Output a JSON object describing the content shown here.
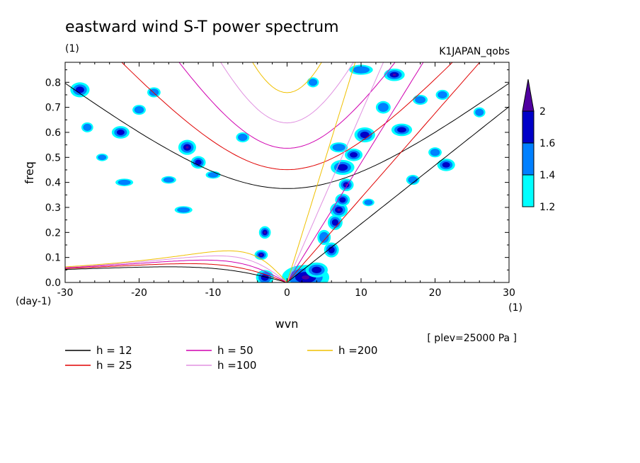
{
  "chart_data": {
    "type": "heatmap",
    "title": "eastward wind S-T power spectrum",
    "subtitle_left": "(1)",
    "subtitle_right": "K1JAPAN_qobs",
    "xlabel": "wvn",
    "ylabel": "freq",
    "x_unit": "(1)",
    "y_unit": "(day-1)",
    "annotation": "[ plev=25000 Pa ]",
    "xlim": [
      -30,
      30
    ],
    "ylim": [
      0,
      0.88
    ],
    "x_ticks": [
      {
        "value": -30,
        "label": "-30"
      },
      {
        "value": -20,
        "label": "-20"
      },
      {
        "value": -10,
        "label": "-10"
      },
      {
        "value": 0,
        "label": "0"
      },
      {
        "value": 10,
        "label": "10"
      },
      {
        "value": 20,
        "label": "20"
      },
      {
        "value": 30,
        "label": "30"
      }
    ],
    "y_ticks": [
      {
        "value": 0.0,
        "label": "0.0"
      },
      {
        "value": 0.1,
        "label": "0.1"
      },
      {
        "value": 0.2,
        "label": "0.2"
      },
      {
        "value": 0.3,
        "label": "0.3"
      },
      {
        "value": 0.4,
        "label": "0.4"
      },
      {
        "value": 0.5,
        "label": "0.5"
      },
      {
        "value": 0.6,
        "label": "0.6"
      },
      {
        "value": 0.7,
        "label": "0.7"
      },
      {
        "value": 0.8,
        "label": "0.8"
      }
    ],
    "colorbar": {
      "levels": [
        1.2,
        1.4,
        1.6,
        2.0
      ],
      "labels": [
        "1.2",
        "1.4",
        "1.6",
        "2"
      ],
      "colors": [
        "#00ffff",
        "#0080ff",
        "#0000c8",
        "#5000a0"
      ]
    },
    "dispersion_curves": [
      {
        "name": "h = 12",
        "h": 12,
        "color": "#000000"
      },
      {
        "name": "h = 25",
        "h": 25,
        "color": "#e00000"
      },
      {
        "name": "h = 50",
        "h": 50,
        "color": "#d000b0"
      },
      {
        "name": "h =100",
        "h": 100,
        "color": "#e090e0"
      },
      {
        "name": "h =200",
        "h": 200,
        "color": "#f0c000"
      }
    ],
    "power_blobs": [
      {
        "k": 2.5,
        "f": 0.02,
        "rk": 3.2,
        "rf": 0.05,
        "level": 3
      },
      {
        "k": 4.0,
        "f": 0.05,
        "rk": 1.5,
        "rf": 0.03,
        "level": 2
      },
      {
        "k": -3.5,
        "f": 0.11,
        "rk": 0.9,
        "rf": 0.02,
        "level": 3
      },
      {
        "k": -3.0,
        "f": 0.02,
        "rk": 1.2,
        "rf": 0.03,
        "level": 2
      },
      {
        "k": -3.0,
        "f": 0.2,
        "rk": 0.8,
        "rf": 0.025,
        "level": 3
      },
      {
        "k": 6.0,
        "f": 0.13,
        "rk": 1.0,
        "rf": 0.03,
        "level": 2
      },
      {
        "k": 5.0,
        "f": 0.18,
        "rk": 0.9,
        "rf": 0.03,
        "level": 1
      },
      {
        "k": 6.5,
        "f": 0.24,
        "rk": 1.0,
        "rf": 0.03,
        "level": 2
      },
      {
        "k": 7.0,
        "f": 0.29,
        "rk": 1.2,
        "rf": 0.03,
        "level": 3
      },
      {
        "k": 7.5,
        "f": 0.33,
        "rk": 1.0,
        "rf": 0.025,
        "level": 2
      },
      {
        "k": 8.0,
        "f": 0.39,
        "rk": 1.0,
        "rf": 0.025,
        "level": 3
      },
      {
        "k": 7.5,
        "f": 0.46,
        "rk": 1.6,
        "rf": 0.03,
        "level": 2
      },
      {
        "k": 9.0,
        "f": 0.51,
        "rk": 1.2,
        "rf": 0.025,
        "level": 2
      },
      {
        "k": 10.5,
        "f": 0.59,
        "rk": 1.4,
        "rf": 0.03,
        "level": 2
      },
      {
        "k": 14.5,
        "f": 0.83,
        "rk": 1.4,
        "rf": 0.025,
        "level": 3
      },
      {
        "k": 15.5,
        "f": 0.61,
        "rk": 1.4,
        "rf": 0.025,
        "level": 2
      },
      {
        "k": 13.0,
        "f": 0.7,
        "rk": 1.0,
        "rf": 0.025,
        "level": 1
      },
      {
        "k": 21.5,
        "f": 0.47,
        "rk": 1.2,
        "rf": 0.025,
        "level": 2
      },
      {
        "k": 17.0,
        "f": 0.41,
        "rk": 0.9,
        "rf": 0.02,
        "level": 1
      },
      {
        "k": -13.5,
        "f": 0.54,
        "rk": 1.2,
        "rf": 0.03,
        "level": 3
      },
      {
        "k": -12.0,
        "f": 0.48,
        "rk": 1.0,
        "rf": 0.025,
        "level": 2
      },
      {
        "k": -22.5,
        "f": 0.6,
        "rk": 1.2,
        "rf": 0.025,
        "level": 2
      },
      {
        "k": -28.0,
        "f": 0.77,
        "rk": 1.3,
        "rf": 0.03,
        "level": 2
      },
      {
        "k": -27.0,
        "f": 0.62,
        "rk": 0.8,
        "rf": 0.02,
        "level": 1
      },
      {
        "k": -22.0,
        "f": 0.4,
        "rk": 1.2,
        "rf": 0.015,
        "level": 1
      },
      {
        "k": -14.0,
        "f": 0.29,
        "rk": 1.2,
        "rf": 0.015,
        "level": 1
      },
      {
        "k": -6.0,
        "f": 0.58,
        "rk": 0.9,
        "rf": 0.02,
        "level": 1
      },
      {
        "k": -20.0,
        "f": 0.69,
        "rk": 0.9,
        "rf": 0.02,
        "level": 1
      },
      {
        "k": 3.5,
        "f": 0.8,
        "rk": 0.8,
        "rf": 0.02,
        "level": 1
      },
      {
        "k": 18.0,
        "f": 0.73,
        "rk": 1.0,
        "rf": 0.02,
        "level": 1
      },
      {
        "k": 21.0,
        "f": 0.75,
        "rk": 0.9,
        "rf": 0.02,
        "level": 1
      },
      {
        "k": 26.0,
        "f": 0.68,
        "rk": 0.8,
        "rf": 0.02,
        "level": 1
      },
      {
        "k": -10.0,
        "f": 0.43,
        "rk": 1.0,
        "rf": 0.015,
        "level": 1
      },
      {
        "k": -16.0,
        "f": 0.41,
        "rk": 1.0,
        "rf": 0.015,
        "level": 1
      },
      {
        "k": 10.0,
        "f": 0.85,
        "rk": 1.6,
        "rf": 0.02,
        "level": 1
      },
      {
        "k": 7.0,
        "f": 0.54,
        "rk": 1.2,
        "rf": 0.02,
        "level": 1
      },
      {
        "k": 11.0,
        "f": 0.32,
        "rk": 0.8,
        "rf": 0.015,
        "level": 1
      },
      {
        "k": 20.0,
        "f": 0.52,
        "rk": 0.9,
        "rf": 0.02,
        "level": 1
      },
      {
        "k": -25.0,
        "f": 0.5,
        "rk": 0.8,
        "rf": 0.015,
        "level": 1
      },
      {
        "k": -18.0,
        "f": 0.76,
        "rk": 0.9,
        "rf": 0.02,
        "level": 1
      }
    ]
  }
}
